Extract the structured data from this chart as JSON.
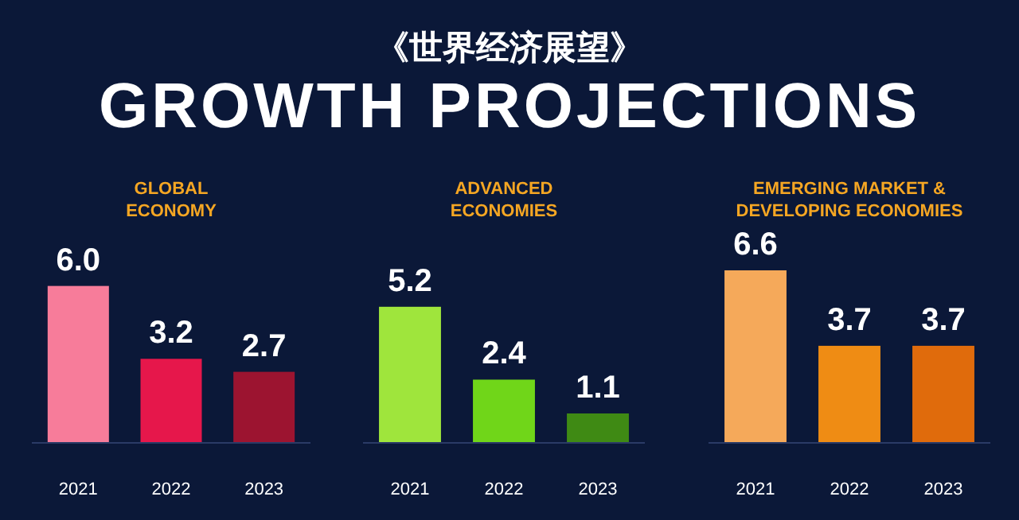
{
  "chart_data": [
    {
      "type": "other",
      "title": "《世界经济展望》",
      "subtitle": "GROWTH PROJECTIONS"
    },
    {
      "type": "bar",
      "title": "GLOBAL\nECONOMY",
      "categories": [
        "2021",
        "2022",
        "2023"
      ],
      "values": [
        6.0,
        3.2,
        2.7
      ],
      "value_labels": [
        "6.0",
        "3.2",
        "2.7"
      ],
      "colors": [
        "#f77c9a",
        "#e6174b",
        "#9c1430"
      ],
      "relative": false
    },
    {
      "type": "bar",
      "title": "ADVANCED\nECONOMIES",
      "categories": [
        "2021",
        "2022",
        "2023"
      ],
      "values": [
        5.2,
        2.4,
        1.1
      ],
      "value_labels": [
        "5.2",
        "2.4",
        "1.1"
      ],
      "colors": [
        "#9fe53c",
        "#70d619",
        "#3f8a14"
      ],
      "relative": false
    },
    {
      "type": "bar",
      "title": "EMERGING MARKET &\nDEVELOPING ECONOMIES",
      "categories": [
        "2021",
        "2022",
        "2023"
      ],
      "values": [
        6.6,
        3.7,
        3.7
      ],
      "value_labels": [
        "6.6",
        "3.7",
        "3.7"
      ],
      "colors": [
        "#f5a95a",
        "#ef8c14",
        "#e06b0c"
      ],
      "relative": false
    }
  ]
}
